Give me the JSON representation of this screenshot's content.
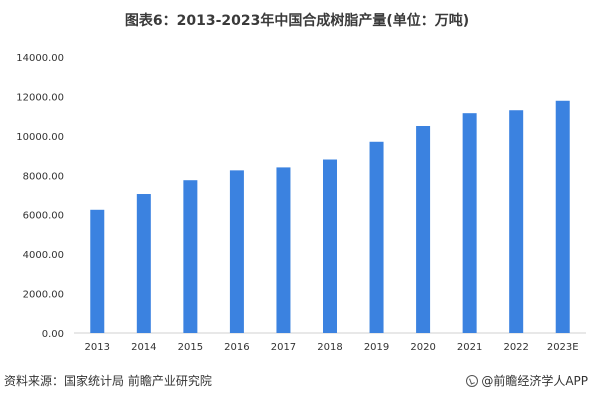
{
  "chart_data": {
    "type": "bar",
    "title": "图表6：2013-2023年中国合成树脂产量(单位：万吨)",
    "categories": [
      "2013",
      "2014",
      "2015",
      "2016",
      "2017",
      "2018",
      "2019",
      "2020",
      "2021",
      "2022",
      "2023E"
    ],
    "series": [
      {
        "values": [
          6250,
          7050,
          7750,
          8250,
          8400,
          8800,
          9700,
          10500,
          11150,
          11300,
          11780
        ]
      }
    ],
    "ylim": [
      0,
      14000
    ],
    "yticks": [
      "0.00",
      "2000.00",
      "4000.00",
      "6000.00",
      "8000.00",
      "10000.00",
      "12000.00",
      "14000.00"
    ],
    "xlabel": "",
    "ylabel": "",
    "grid": false,
    "bar_color": "#3b82e0"
  },
  "footer": {
    "source": "资料来源：国家统计局 前瞻产业研究院",
    "brand": "@前瞻经济学人APP"
  }
}
